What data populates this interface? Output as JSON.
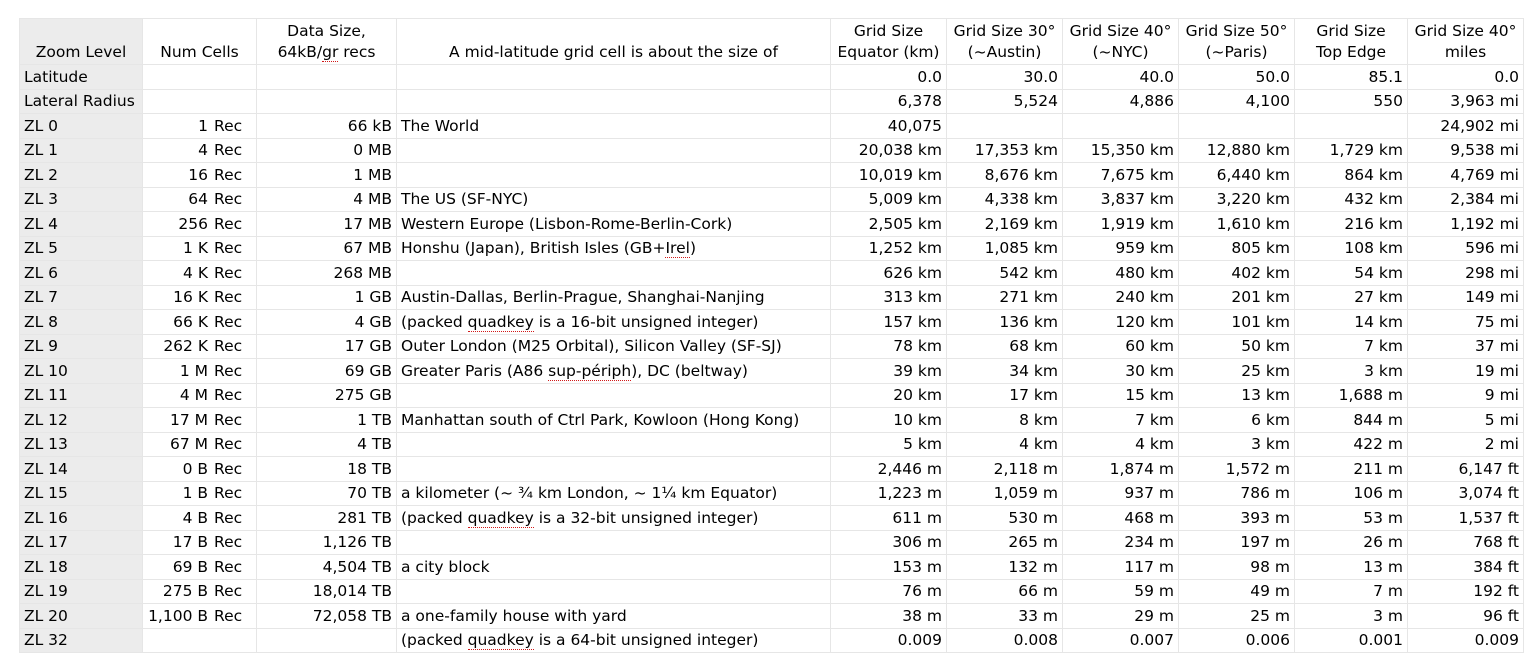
{
  "headers": {
    "zoom_level": "Zoom Level",
    "num_cells": "Num Cells",
    "data_size_1": "Data Size,",
    "data_size_2a": "64kB/",
    "data_size_2b": "gr",
    "data_size_2c": " recs",
    "description": "A mid-latitude grid cell is about the size of",
    "equator_1": "Grid Size",
    "equator_2": "Equator (km)",
    "g30_1": "Grid Size 30°",
    "g30_2": "(~Austin)",
    "g40_1": "Grid Size 40°",
    "g40_2": "(~NYC)",
    "g50_1": "Grid Size 50°",
    "g50_2": "(~Paris)",
    "top_1": "Grid Size",
    "top_2": "Top Edge",
    "miles_1": "Grid Size 40°",
    "miles_2": "miles"
  },
  "latitude_row": {
    "label": "Latitude",
    "equator": "0.0",
    "g30": "30.0",
    "g40": "40.0",
    "g50": "50.0",
    "top": "85.1",
    "miles": "0.0"
  },
  "radius_row": {
    "label": "Lateral Radius",
    "equator": "6,378",
    "g30": "5,524",
    "g40": "4,886",
    "g50": "4,100",
    "top": "550",
    "miles": "3,963 mi"
  },
  "rows": [
    {
      "zl": "ZL 0",
      "cells_n": "1",
      "cells_u": "Rec",
      "size": "66 kB",
      "desc": [
        {
          "t": "The World"
        }
      ],
      "eq": "40,075",
      "g30": "",
      "g40": "",
      "g50": "",
      "top": "",
      "miles": "24,902 mi"
    },
    {
      "zl": "ZL 1",
      "cells_n": "4",
      "cells_u": "Rec",
      "size": "0 MB",
      "desc": [],
      "eq": "20,038 km",
      "g30": "17,353 km",
      "g40": "15,350 km",
      "g50": "12,880 km",
      "top": "1,729 km",
      "miles": "9,538 mi"
    },
    {
      "zl": "ZL 2",
      "cells_n": "16",
      "cells_u": "Rec",
      "size": "1 MB",
      "desc": [],
      "eq": "10,019 km",
      "g30": "8,676 km",
      "g40": "7,675 km",
      "g50": "6,440 km",
      "top": "864 km",
      "miles": "4,769 mi"
    },
    {
      "zl": "ZL 3",
      "cells_n": "64",
      "cells_u": "Rec",
      "size": "4 MB",
      "desc": [
        {
          "t": "The US (SF-NYC)"
        }
      ],
      "eq": "5,009 km",
      "g30": "4,338 km",
      "g40": "3,837 km",
      "g50": "3,220 km",
      "top": "432 km",
      "miles": "2,384 mi"
    },
    {
      "zl": "ZL 4",
      "cells_n": "256",
      "cells_u": "Rec",
      "size": "17 MB",
      "desc": [
        {
          "t": "Western Europe (Lisbon-Rome-Berlin-Cork)"
        }
      ],
      "eq": "2,505 km",
      "g30": "2,169 km",
      "g40": "1,919 km",
      "g50": "1,610 km",
      "top": "216 km",
      "miles": "1,192 mi"
    },
    {
      "zl": "ZL 5",
      "cells_n": "1 K",
      "cells_u": "Rec",
      "size": "67 MB",
      "desc": [
        {
          "t": "Honshu (Japan), British Isles (GB+"
        },
        {
          "t": "Irel",
          "sp": true
        },
        {
          "t": ")"
        }
      ],
      "eq": "1,252 km",
      "g30": "1,085 km",
      "g40": "959 km",
      "g50": "805 km",
      "top": "108 km",
      "miles": "596 mi"
    },
    {
      "zl": "ZL 6",
      "cells_n": "4 K",
      "cells_u": "Rec",
      "size": "268 MB",
      "desc": [],
      "eq": "626 km",
      "g30": "542 km",
      "g40": "480 km",
      "g50": "402 km",
      "top": "54 km",
      "miles": "298 mi"
    },
    {
      "zl": "ZL 7",
      "cells_n": "16 K",
      "cells_u": "Rec",
      "size": "1 GB",
      "desc": [
        {
          "t": "Austin-Dallas, Berlin-Prague, Shanghai-Nanjing"
        }
      ],
      "eq": "313 km",
      "g30": "271 km",
      "g40": "240 km",
      "g50": "201 km",
      "top": "27 km",
      "miles": "149 mi"
    },
    {
      "zl": "ZL 8",
      "cells_n": "66 K",
      "cells_u": "Rec",
      "size": "4 GB",
      "desc": [
        {
          "t": "(packed "
        },
        {
          "t": "quadkey",
          "sp": true
        },
        {
          "t": " is a 16-bit unsigned integer)"
        }
      ],
      "eq": "157 km",
      "g30": "136 km",
      "g40": "120 km",
      "g50": "101 km",
      "top": "14 km",
      "miles": "75 mi"
    },
    {
      "zl": "ZL 9",
      "cells_n": "262 K",
      "cells_u": "Rec",
      "size": "17 GB",
      "desc": [
        {
          "t": "Outer London (M25 Orbital), Silicon Valley (SF-SJ)"
        }
      ],
      "eq": "78 km",
      "g30": "68 km",
      "g40": "60 km",
      "g50": "50 km",
      "top": "7 km",
      "miles": "37 mi"
    },
    {
      "zl": "ZL 10",
      "cells_n": "1 M",
      "cells_u": "Rec",
      "size": "69 GB",
      "desc": [
        {
          "t": "Greater Paris (A86 "
        },
        {
          "t": "sup-périph",
          "sp": true
        },
        {
          "t": "), DC (beltway)"
        }
      ],
      "eq": "39 km",
      "g30": "34 km",
      "g40": "30 km",
      "g50": "25 km",
      "top": "3 km",
      "miles": "19 mi"
    },
    {
      "zl": "ZL 11",
      "cells_n": "4 M",
      "cells_u": "Rec",
      "size": "275 GB",
      "desc": [],
      "eq": "20 km",
      "g30": "17 km",
      "g40": "15 km",
      "g50": "13 km",
      "top": "1,688 m",
      "miles": "9 mi"
    },
    {
      "zl": "ZL 12",
      "cells_n": "17 M",
      "cells_u": "Rec",
      "size": "1 TB",
      "desc": [
        {
          "t": "Manhattan south of Ctrl Park, Kowloon (Hong Kong)"
        }
      ],
      "eq": "10 km",
      "g30": "8 km",
      "g40": "7 km",
      "g50": "6 km",
      "top": "844 m",
      "miles": "5 mi"
    },
    {
      "zl": "ZL 13",
      "cells_n": "67 M",
      "cells_u": "Rec",
      "size": "4 TB",
      "desc": [],
      "eq": "5 km",
      "g30": "4 km",
      "g40": "4 km",
      "g50": "3 km",
      "top": "422 m",
      "miles": "2 mi"
    },
    {
      "zl": "ZL 14",
      "cells_n": "0 B",
      "cells_u": "Rec",
      "size": "18 TB",
      "desc": [],
      "eq": "2,446 m",
      "g30": "2,118 m",
      "g40": "1,874 m",
      "g50": "1,572 m",
      "top": "211 m",
      "miles": "6,147 ft"
    },
    {
      "zl": "ZL 15",
      "cells_n": "1 B",
      "cells_u": "Rec",
      "size": "70 TB",
      "desc": [
        {
          "t": "a kilometer (~ ¾ km London, ~ 1¼ km Equator)"
        }
      ],
      "eq": "1,223 m",
      "g30": "1,059 m",
      "g40": "937 m",
      "g50": "786 m",
      "top": "106 m",
      "miles": "3,074 ft"
    },
    {
      "zl": "ZL 16",
      "cells_n": "4 B",
      "cells_u": "Rec",
      "size": "281 TB",
      "desc": [
        {
          "t": "(packed "
        },
        {
          "t": "quadkey",
          "sp": true
        },
        {
          "t": " is a 32-bit unsigned integer)"
        }
      ],
      "eq": "611 m",
      "g30": "530 m",
      "g40": "468 m",
      "g50": "393 m",
      "top": "53 m",
      "miles": "1,537 ft"
    },
    {
      "zl": "ZL 17",
      "cells_n": "17 B",
      "cells_u": "Rec",
      "size": "1,126 TB",
      "desc": [],
      "eq": "306 m",
      "g30": "265 m",
      "g40": "234 m",
      "g50": "197 m",
      "top": "26 m",
      "miles": "768 ft"
    },
    {
      "zl": "ZL 18",
      "cells_n": "69 B",
      "cells_u": "Rec",
      "size": "4,504 TB",
      "desc": [
        {
          "t": "a city block"
        }
      ],
      "eq": "153 m",
      "g30": "132 m",
      "g40": "117 m",
      "g50": "98 m",
      "top": "13 m",
      "miles": "384 ft"
    },
    {
      "zl": "ZL 19",
      "cells_n": "275 B",
      "cells_u": "Rec",
      "size": "18,014 TB",
      "desc": [],
      "eq": "76 m",
      "g30": "66 m",
      "g40": "59 m",
      "g50": "49 m",
      "top": "7 m",
      "miles": "192 ft"
    },
    {
      "zl": "ZL 20",
      "cells_n": "1,100 B",
      "cells_u": "Rec",
      "size": "72,058 TB",
      "desc": [
        {
          "t": "a one-family house with yard"
        }
      ],
      "eq": "38 m",
      "g30": "33 m",
      "g40": "29 m",
      "g50": "25 m",
      "top": "3 m",
      "miles": "96 ft"
    },
    {
      "zl": "ZL 32",
      "cells_n": "",
      "cells_u": "",
      "size": "",
      "desc": [
        {
          "t": "(packed "
        },
        {
          "t": "quadkey",
          "sp": true
        },
        {
          "t": " is a 64-bit unsigned integer)"
        }
      ],
      "eq": "0.009",
      "g30": "0.008",
      "g40": "0.007",
      "g50": "0.006",
      "top": "0.001",
      "miles": "0.009"
    }
  ]
}
